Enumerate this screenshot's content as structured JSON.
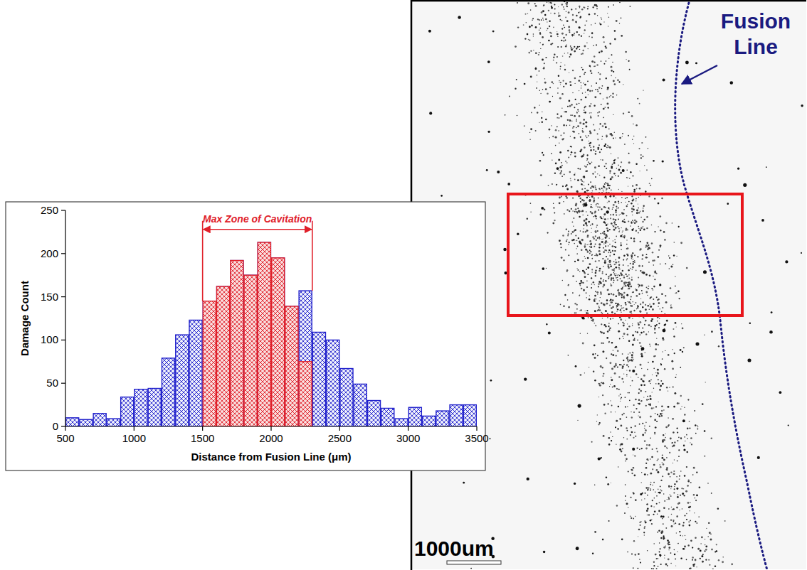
{
  "chart_data": {
    "type": "histogram",
    "x_label": "Distance from Fusion Line (μm)",
    "y_label": "Damage Count",
    "bins": [
      500,
      600,
      700,
      800,
      900,
      1000,
      1100,
      1200,
      1300,
      1400,
      1500,
      1600,
      1700,
      1800,
      1900,
      2000,
      2100,
      2200,
      2300,
      2400,
      2500,
      2600,
      2700,
      2800,
      2900,
      3000,
      3100,
      3200,
      3300,
      3400,
      3500
    ],
    "series": [
      {
        "color": "#2222cc",
        "values": [
          10,
          8,
          15,
          9,
          34,
          43,
          44,
          79,
          106,
          123,
          145,
          162,
          192,
          175,
          213,
          195,
          139,
          157,
          109,
          100,
          67,
          49,
          30,
          21,
          9,
          22,
          12,
          18,
          25,
          25
        ]
      },
      {
        "color": "#e0202a",
        "values": [
          null,
          null,
          null,
          null,
          null,
          null,
          null,
          null,
          null,
          null,
          145,
          162,
          192,
          175,
          213,
          195,
          139,
          75,
          null,
          null,
          null,
          null,
          null,
          null,
          null,
          null,
          null,
          null,
          null,
          null
        ]
      }
    ],
    "xlim": [
      500,
      3500
    ],
    "xticks": [
      500,
      1000,
      1500,
      2000,
      2500,
      3000,
      3500
    ],
    "ylim": [
      0,
      250
    ],
    "yticks": [
      0,
      50,
      100,
      150,
      200,
      250
    ],
    "annotations": [
      {
        "text": "Max Zone of Cavitation",
        "x_start": 1500,
        "x_end": 2300,
        "y": 228
      }
    ]
  },
  "micrograph": {
    "label": "Fusion Line",
    "scale_bar": "1000um"
  }
}
